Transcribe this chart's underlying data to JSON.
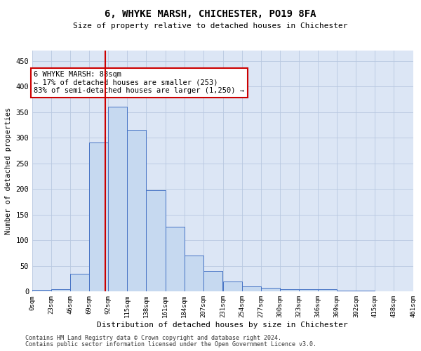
{
  "title": "6, WHYKE MARSH, CHICHESTER, PO19 8FA",
  "subtitle": "Size of property relative to detached houses in Chichester",
  "xlabel": "Distribution of detached houses by size in Chichester",
  "ylabel": "Number of detached properties",
  "bar_values": [
    3,
    5,
    35,
    290,
    360,
    315,
    197,
    127,
    70,
    40,
    20,
    10,
    7,
    4,
    5,
    4,
    2,
    2,
    1
  ],
  "bin_edges": [
    0,
    23,
    46,
    69,
    92,
    115,
    138,
    161,
    184,
    207,
    231,
    254,
    277,
    300,
    323,
    346,
    369,
    392,
    415,
    438
  ],
  "tick_labels": [
    "0sqm",
    "23sqm",
    "46sqm",
    "69sqm",
    "92sqm",
    "115sqm",
    "138sqm",
    "161sqm",
    "184sqm",
    "207sqm",
    "231sqm",
    "254sqm",
    "277sqm",
    "300sqm",
    "323sqm",
    "346sqm",
    "369sqm",
    "392sqm",
    "415sqm",
    "438sqm",
    "461sqm"
  ],
  "property_line_x": 88,
  "bar_color": "#c6d9f0",
  "bar_edge_color": "#4472c4",
  "vline_color": "#cc0000",
  "annotation_text": "6 WHYKE MARSH: 88sqm\n← 17% of detached houses are smaller (253)\n83% of semi-detached houses are larger (1,250) →",
  "annotation_box_color": "#ffffff",
  "annotation_box_edge": "#cc0000",
  "ylim": [
    0,
    470
  ],
  "yticks": [
    0,
    50,
    100,
    150,
    200,
    250,
    300,
    350,
    400,
    450
  ],
  "footer1": "Contains HM Land Registry data © Crown copyright and database right 2024.",
  "footer2": "Contains public sector information licensed under the Open Government Licence v3.0.",
  "bg_color": "#ffffff",
  "ax_bg_color": "#dce6f5",
  "grid_color": "#b8c8e0"
}
